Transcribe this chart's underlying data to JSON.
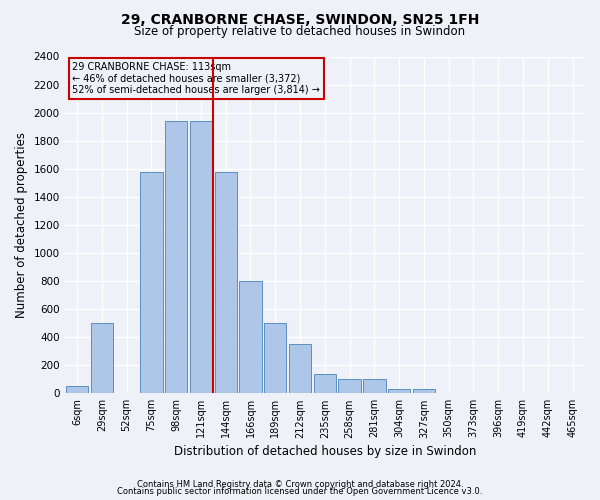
{
  "title": "29, CRANBORNE CHASE, SWINDON, SN25 1FH",
  "subtitle": "Size of property relative to detached houses in Swindon",
  "xlabel": "Distribution of detached houses by size in Swindon",
  "ylabel": "Number of detached properties",
  "footnote1": "Contains HM Land Registry data © Crown copyright and database right 2024.",
  "footnote2": "Contains public sector information licensed under the Open Government Licence v3.0.",
  "bar_labels": [
    "6sqm",
    "29sqm",
    "52sqm",
    "75sqm",
    "98sqm",
    "121sqm",
    "144sqm",
    "166sqm",
    "189sqm",
    "212sqm",
    "235sqm",
    "258sqm",
    "281sqm",
    "304sqm",
    "327sqm",
    "350sqm",
    "373sqm",
    "396sqm",
    "419sqm",
    "442sqm",
    "465sqm"
  ],
  "bar_values": [
    55,
    500,
    0,
    1580,
    1940,
    1940,
    1580,
    800,
    500,
    350,
    140,
    100,
    100,
    30,
    30,
    0,
    0,
    0,
    0,
    0,
    0
  ],
  "bar_color": "#aec6e8",
  "bar_edgecolor": "#5a8fc0",
  "property_label": "29 CRANBORNE CHASE: 113sqm",
  "annotation_line1": "← 46% of detached houses are smaller (3,372)",
  "annotation_line2": "52% of semi-detached houses are larger (3,814) →",
  "vline_color": "#cc0000",
  "annotation_box_edgecolor": "#cc0000",
  "background_color": "#eef2f8",
  "vline_x": 5.5,
  "ylim": [
    0,
    2400
  ],
  "yticks": [
    0,
    200,
    400,
    600,
    800,
    1000,
    1200,
    1400,
    1600,
    1800,
    2000,
    2200,
    2400
  ]
}
